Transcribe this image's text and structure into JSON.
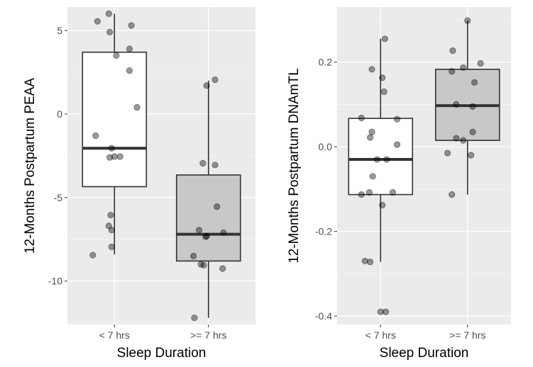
{
  "chart_data": [
    {
      "type": "boxplot",
      "xlabel": "Sleep Duration",
      "ylabel": "12-Months Postpartum PEAA",
      "ylim": [
        -12.6,
        6.4
      ],
      "yticks": [
        -10,
        -5,
        0,
        5
      ],
      "ytick_labels": [
        "-10",
        "-5",
        "0",
        "5"
      ],
      "categories": [
        "< 7 hrs",
        ">= 7 hrs"
      ],
      "groups": [
        {
          "name": "< 7 hrs",
          "fill": "#ffffff",
          "min": -8.4,
          "q1": -4.35,
          "median": -2.05,
          "q3": 3.7,
          "max": 6.0,
          "points": [
            {
              "x": -0.18,
              "y": 5.55
            },
            {
              "x": -0.06,
              "y": 6.0
            },
            {
              "x": -0.05,
              "y": 4.9
            },
            {
              "x": 0.18,
              "y": 5.3
            },
            {
              "x": 0.16,
              "y": 3.9
            },
            {
              "x": 0.02,
              "y": 3.5
            },
            {
              "x": 0.16,
              "y": 2.6
            },
            {
              "x": 0.24,
              "y": 0.4
            },
            {
              "x": -0.2,
              "y": -1.3
            },
            {
              "x": -0.03,
              "y": -2.05
            },
            {
              "x": -0.05,
              "y": -2.6
            },
            {
              "x": 0.0,
              "y": -2.55
            },
            {
              "x": 0.06,
              "y": -2.55
            },
            {
              "x": -0.04,
              "y": -6.05
            },
            {
              "x": -0.06,
              "y": -6.7
            },
            {
              "x": -0.03,
              "y": -6.95
            },
            {
              "x": -0.03,
              "y": -7.95
            },
            {
              "x": -0.23,
              "y": -8.45
            }
          ]
        },
        {
          "name": ">= 7 hrs",
          "fill": "#c8c8c8",
          "min": -12.2,
          "q1": -8.8,
          "median": -7.2,
          "q3": -3.65,
          "max": 2.0,
          "points": [
            {
              "x": 0.07,
              "y": 2.05
            },
            {
              "x": -0.02,
              "y": 1.7
            },
            {
              "x": -0.06,
              "y": -2.95
            },
            {
              "x": 0.07,
              "y": -3.05
            },
            {
              "x": 0.09,
              "y": -5.55
            },
            {
              "x": -0.1,
              "y": -6.95
            },
            {
              "x": -0.02,
              "y": -7.3
            },
            {
              "x": -0.03,
              "y": -7.35
            },
            {
              "x": 0.16,
              "y": -7.1
            },
            {
              "x": -0.16,
              "y": -8.5
            },
            {
              "x": -0.08,
              "y": -9.0
            },
            {
              "x": -0.05,
              "y": -9.05
            },
            {
              "x": 0.15,
              "y": -9.25
            },
            {
              "x": -0.15,
              "y": -12.2
            }
          ]
        }
      ]
    },
    {
      "type": "boxplot",
      "xlabel": "Sleep Duration",
      "ylabel": "12-Months Postpartum DNAmTL",
      "ylim": [
        -0.42,
        0.33
      ],
      "yticks": [
        -0.4,
        -0.2,
        0.0,
        0.2
      ],
      "ytick_labels": [
        "-0.4",
        "-0.2",
        "0.0",
        "0.2"
      ],
      "categories": [
        "< 7 hrs",
        ">= 7 hrs"
      ],
      "groups": [
        {
          "name": "< 7 hrs",
          "fill": "#ffffff",
          "min": -0.272,
          "q1": -0.113,
          "median": -0.03,
          "q3": 0.067,
          "max": 0.255,
          "points": [
            {
              "x": 0.05,
              "y": 0.255
            },
            {
              "x": -0.1,
              "y": 0.183
            },
            {
              "x": 0.02,
              "y": 0.163
            },
            {
              "x": 0.04,
              "y": 0.13
            },
            {
              "x": -0.22,
              "y": 0.068
            },
            {
              "x": 0.19,
              "y": 0.065
            },
            {
              "x": -0.1,
              "y": 0.035
            },
            {
              "x": -0.12,
              "y": 0.022
            },
            {
              "x": 0.19,
              "y": 0.005
            },
            {
              "x": -0.04,
              "y": -0.03
            },
            {
              "x": 0.07,
              "y": -0.03
            },
            {
              "x": -0.09,
              "y": -0.07
            },
            {
              "x": -0.22,
              "y": -0.113
            },
            {
              "x": -0.13,
              "y": -0.108
            },
            {
              "x": 0.14,
              "y": -0.108
            },
            {
              "x": 0.02,
              "y": -0.138
            },
            {
              "x": -0.18,
              "y": -0.27
            },
            {
              "x": -0.12,
              "y": -0.272
            },
            {
              "x": 0.0,
              "y": -0.39
            },
            {
              "x": 0.06,
              "y": -0.39
            }
          ]
        },
        {
          "name": ">= 7 hrs",
          "fill": "#c8c8c8",
          "min": -0.113,
          "q1": 0.015,
          "median": 0.097,
          "q3": 0.183,
          "max": 0.298,
          "points": [
            {
              "x": 0.0,
              "y": 0.298
            },
            {
              "x": -0.17,
              "y": 0.227
            },
            {
              "x": 0.15,
              "y": 0.197
            },
            {
              "x": -0.05,
              "y": 0.187
            },
            {
              "x": -0.18,
              "y": 0.178
            },
            {
              "x": 0.08,
              "y": 0.152
            },
            {
              "x": -0.13,
              "y": 0.1
            },
            {
              "x": 0.06,
              "y": 0.095
            },
            {
              "x": 0.06,
              "y": 0.035
            },
            {
              "x": -0.13,
              "y": 0.02
            },
            {
              "x": -0.05,
              "y": 0.015
            },
            {
              "x": -0.23,
              "y": -0.015
            },
            {
              "x": 0.04,
              "y": -0.02
            },
            {
              "x": -0.18,
              "y": -0.113
            }
          ]
        }
      ]
    }
  ]
}
